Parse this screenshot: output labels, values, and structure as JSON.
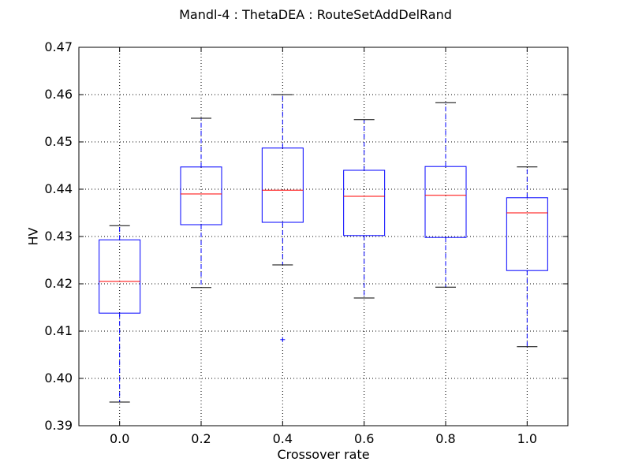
{
  "chart_data": {
    "type": "boxplot",
    "title": "Mandl-4 : ThetaDEA : RouteSetAddDelRand",
    "xlabel": "Crossover rate",
    "ylabel": "HV",
    "ylim": [
      0.39,
      0.47
    ],
    "yticks": [
      "0.39",
      "0.40",
      "0.41",
      "0.42",
      "0.43",
      "0.44",
      "0.45",
      "0.46",
      "0.47"
    ],
    "grid": true,
    "categories": [
      "0.0",
      "0.2",
      "0.4",
      "0.6",
      "0.8",
      "1.0"
    ],
    "boxes": [
      {
        "whisker_low": 0.395,
        "q1": 0.4138,
        "median": 0.4205,
        "q3": 0.4293,
        "whisker_high": 0.4323,
        "outliers": []
      },
      {
        "whisker_low": 0.4192,
        "q1": 0.4325,
        "median": 0.439,
        "q3": 0.4447,
        "whisker_high": 0.455,
        "outliers": []
      },
      {
        "whisker_low": 0.424,
        "q1": 0.433,
        "median": 0.4398,
        "q3": 0.4487,
        "whisker_high": 0.46,
        "outliers": [
          0.4082
        ]
      },
      {
        "whisker_low": 0.417,
        "q1": 0.4302,
        "median": 0.4385,
        "q3": 0.444,
        "whisker_high": 0.4547,
        "outliers": []
      },
      {
        "whisker_low": 0.4193,
        "q1": 0.4298,
        "median": 0.4387,
        "q3": 0.4448,
        "whisker_high": 0.4583,
        "outliers": []
      },
      {
        "whisker_low": 0.4067,
        "q1": 0.4228,
        "median": 0.435,
        "q3": 0.4382,
        "whisker_high": 0.4447,
        "outliers": []
      }
    ],
    "colors": {
      "box": "#0000ff",
      "median": "#ff0000",
      "whisker": "#0000ff",
      "cap": "#000000",
      "outlier": "#0000ff"
    }
  }
}
